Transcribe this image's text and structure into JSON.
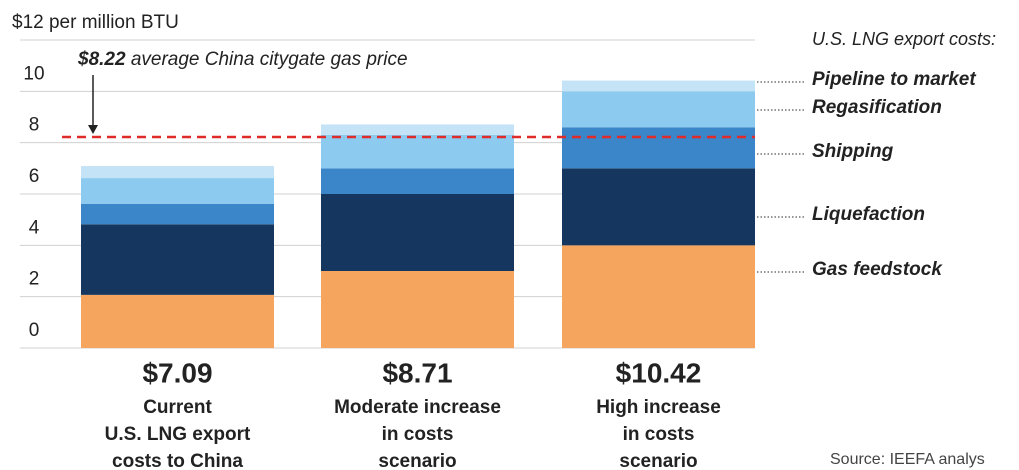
{
  "chart_data": {
    "type": "stacked_bar",
    "categories": [
      [
        "Current",
        "U.S. LNG export",
        "costs to China"
      ],
      [
        "Moderate increase",
        "in costs",
        "scenario"
      ],
      [
        "High increase",
        "in costs",
        "scenario"
      ]
    ],
    "series": [
      {
        "name": "Gas feedstock",
        "color": "#f6a55f",
        "values": [
          2.07,
          3.0,
          4.0
        ]
      },
      {
        "name": "Liquefaction",
        "color": "#15365e",
        "values": [
          2.75,
          3.0,
          3.0
        ]
      },
      {
        "name": "Shipping",
        "color": "#3a86c8",
        "values": [
          0.8,
          1.0,
          1.6
        ]
      },
      {
        "name": "Regasification",
        "color": "#8ccaf0",
        "values": [
          1.0,
          1.3,
          1.4
        ]
      },
      {
        "name": "Pipeline to market",
        "color": "#c5e3f6",
        "values": [
          0.47,
          0.41,
          0.42
        ]
      }
    ],
    "totals": [
      7.09,
      8.71,
      10.42
    ],
    "total_labels": [
      "$7.09",
      "$8.71",
      "$10.42"
    ],
    "legend_title": "U.S. LNG export costs:",
    "reference": {
      "value": 8.22,
      "value_label": "$8.22",
      "text": "average China citygate gas price",
      "color": "#e02b2b"
    },
    "ylim": [
      0,
      12
    ],
    "yticks": [
      0,
      2,
      4,
      6,
      8,
      10,
      {
        "value": 12,
        "label": "$12 per million BTU"
      }
    ],
    "grid": true,
    "source": "Source: IEEFA analys"
  }
}
